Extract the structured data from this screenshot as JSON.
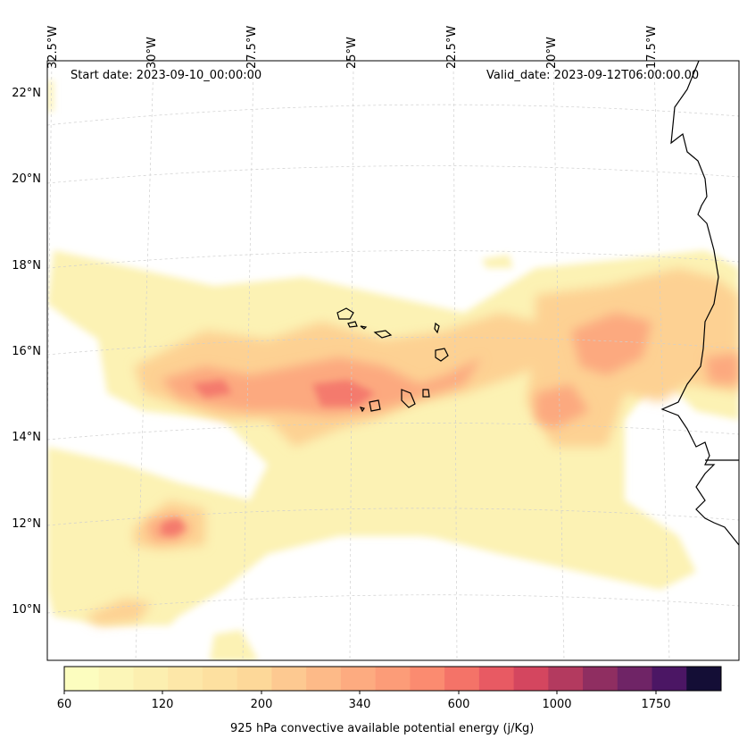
{
  "map": {
    "start_label": "Start date: 2023-09-10_00:00:00",
    "valid_label": "Valid_date: 2023-09-12T06:00:00.00",
    "lon_labels": [
      "32.5°W",
      "30°W",
      "27.5°W",
      "25°W",
      "22.5°W",
      "20°W",
      "17.5°W"
    ],
    "lat_labels": [
      "22°N",
      "20°N",
      "18°N",
      "16°N",
      "14°N",
      "12°N",
      "10°N"
    ],
    "projection": "Lambert conformal",
    "field": "925 hPa convective available potential energy",
    "coastline_color": "#000000",
    "grid_style": "dashed light grey"
  },
  "colorbar": {
    "label": "925 hPa convective available potential energy (j/Kg)",
    "tick_labels": [
      "60",
      "120",
      "200",
      "340",
      "600",
      "1000",
      "1750"
    ],
    "colors": [
      "#fcfdbf",
      "#fcf6b8",
      "#fcefb0",
      "#fde7a8",
      "#fde0a0",
      "#fdd899",
      "#fdc991",
      "#fdba88",
      "#fdab80",
      "#fc9c78",
      "#fb8b70",
      "#f47368",
      "#e85a63",
      "#d4465f",
      "#b33a5f",
      "#8f2e61",
      "#6f2466",
      "#4b1664",
      "#140e36"
    ],
    "scale": "magma_r"
  }
}
